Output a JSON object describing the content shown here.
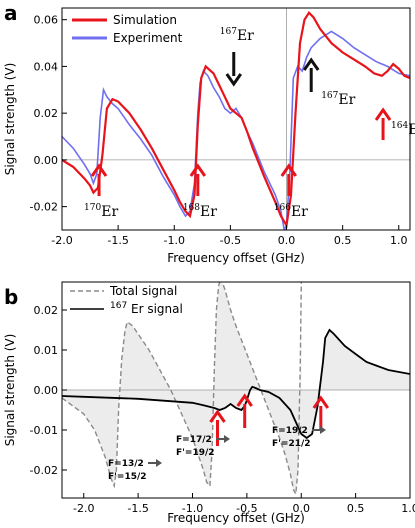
{
  "figure": {
    "panel_a_letter": "a",
    "panel_b_letter": "b"
  },
  "chart_data": [
    {
      "type": "line",
      "panel": "a",
      "xlabel": "Frequency offset (GHz)",
      "ylabel": "Signal strength (V)",
      "xlim": [
        -2.0,
        1.1
      ],
      "ylim": [
        -0.03,
        0.065
      ],
      "x_ticks": [
        -2.0,
        -1.5,
        -1.0,
        -0.5,
        0.0,
        0.5,
        1.0
      ],
      "x_tick_labels": [
        "-2.0",
        "-1.5",
        "-1.0",
        "-0.5",
        "0.0",
        "0.5",
        "1.0"
      ],
      "y_ticks": [
        -0.02,
        0.0,
        0.02,
        0.04,
        0.06
      ],
      "y_tick_labels": [
        "-0.02",
        "0.00",
        "0.02",
        "0.04",
        "0.06"
      ],
      "grid": false,
      "legend_position": "top-left",
      "colors": {
        "Simulation": "#e8141b",
        "Experiment": "#6f6ff0",
        "arrow_red": "#e8141b",
        "arrow_black": "#111111"
      },
      "series": [
        {
          "name": "Simulation",
          "x": [
            -2.0,
            -1.9,
            -1.8,
            -1.75,
            -1.72,
            -1.68,
            -1.64,
            -1.6,
            -1.55,
            -1.5,
            -1.4,
            -1.3,
            -1.2,
            -1.1,
            -1.0,
            -0.95,
            -0.9,
            -0.86,
            -0.82,
            -0.79,
            -0.76,
            -0.72,
            -0.65,
            -0.6,
            -0.55,
            -0.5,
            -0.45,
            -0.4,
            -0.35,
            -0.3,
            -0.2,
            -0.1,
            -0.05,
            0.0,
            0.04,
            0.08,
            0.12,
            0.16,
            0.2,
            0.24,
            0.3,
            0.4,
            0.5,
            0.6,
            0.7,
            0.78,
            0.85,
            0.9,
            0.95,
            1.0,
            1.05,
            1.1
          ],
          "y": [
            0.0,
            -0.003,
            -0.008,
            -0.011,
            -0.014,
            -0.012,
            0.002,
            0.022,
            0.026,
            0.025,
            0.02,
            0.013,
            0.005,
            -0.004,
            -0.013,
            -0.018,
            -0.022,
            -0.024,
            -0.015,
            0.015,
            0.035,
            0.04,
            0.037,
            0.032,
            0.027,
            0.022,
            0.02,
            0.018,
            0.012,
            0.005,
            -0.007,
            -0.018,
            -0.024,
            -0.028,
            -0.015,
            0.02,
            0.05,
            0.06,
            0.063,
            0.061,
            0.056,
            0.05,
            0.046,
            0.043,
            0.04,
            0.037,
            0.036,
            0.038,
            0.041,
            0.039,
            0.036,
            0.035
          ]
        },
        {
          "name": "Experiment",
          "x": [
            -2.0,
            -1.9,
            -1.8,
            -1.75,
            -1.72,
            -1.69,
            -1.66,
            -1.63,
            -1.6,
            -1.55,
            -1.5,
            -1.4,
            -1.3,
            -1.2,
            -1.1,
            -1.0,
            -0.95,
            -0.9,
            -0.86,
            -0.82,
            -0.79,
            -0.77,
            -0.74,
            -0.7,
            -0.65,
            -0.6,
            -0.55,
            -0.5,
            -0.45,
            -0.4,
            -0.35,
            -0.3,
            -0.2,
            -0.1,
            -0.05,
            -0.02,
            0.0,
            0.03,
            0.06,
            0.1,
            0.14,
            0.18,
            0.22,
            0.3,
            0.4,
            0.5,
            0.6,
            0.7,
            0.8,
            0.9,
            1.0,
            1.1
          ],
          "y": [
            0.01,
            0.005,
            -0.002,
            -0.006,
            -0.01,
            -0.006,
            0.018,
            0.03,
            0.027,
            0.024,
            0.022,
            0.015,
            0.009,
            0.002,
            -0.007,
            -0.015,
            -0.02,
            -0.024,
            -0.022,
            -0.01,
            0.02,
            0.033,
            0.038,
            0.036,
            0.031,
            0.027,
            0.022,
            0.02,
            0.022,
            0.018,
            0.012,
            0.007,
            -0.005,
            -0.015,
            -0.022,
            -0.03,
            -0.028,
            -0.005,
            0.035,
            0.04,
            0.038,
            0.044,
            0.048,
            0.052,
            0.055,
            0.052,
            0.048,
            0.045,
            0.042,
            0.04,
            0.037,
            0.036
          ]
        }
      ],
      "annotations": [
        {
          "mass": "170",
          "element": "Er",
          "x": -1.67,
          "arrow": "red",
          "position": "below"
        },
        {
          "mass": "168",
          "element": "Er",
          "x": -0.79,
          "arrow": "red",
          "position": "below"
        },
        {
          "mass": "166",
          "element": "Er",
          "x": 0.02,
          "arrow": "red",
          "position": "below"
        },
        {
          "mass": "167",
          "element": "Er",
          "x": -0.47,
          "arrow": "black",
          "position": "above"
        },
        {
          "mass": "167",
          "element": "Er",
          "x": 0.22,
          "arrow": "black",
          "position": "right"
        },
        {
          "mass": "164",
          "element": "Er",
          "x": 0.86,
          "arrow": "red",
          "position": "right"
        }
      ]
    },
    {
      "type": "line",
      "panel": "b",
      "xlabel": "Frequency offset (GHz)",
      "ylabel": "Signal strength (V)",
      "xlim": [
        -2.2,
        1.0
      ],
      "ylim": [
        -0.027,
        0.027
      ],
      "x_ticks": [
        -2.0,
        -1.5,
        -1.0,
        -0.5,
        0.0,
        0.5,
        1.0
      ],
      "x_tick_labels": [
        "-2.0",
        "-1.5",
        "-1.0",
        "-0.5",
        "0.0",
        "0.5",
        "1.0"
      ],
      "y_ticks": [
        -0.02,
        -0.01,
        0.0,
        0.01,
        0.02
      ],
      "y_tick_labels": [
        "-0.02",
        "-0.01",
        "0.00",
        "0.01",
        "0.02"
      ],
      "grid": false,
      "legend_position": "top-left",
      "colors": {
        "Total signal": "#8a8a8a",
        "Er167 signal": "#000000",
        "fill": "#ececec",
        "arrow_red": "#e8141b"
      },
      "series": [
        {
          "name": "Total signal",
          "style": "dashed",
          "x": [
            -2.2,
            -2.0,
            -1.9,
            -1.8,
            -1.75,
            -1.72,
            -1.7,
            -1.68,
            -1.65,
            -1.62,
            -1.6,
            -1.55,
            -1.5,
            -1.4,
            -1.3,
            -1.2,
            -1.1,
            -1.0,
            -0.95,
            -0.9,
            -0.87,
            -0.84,
            -0.82,
            -0.8,
            -0.78,
            -0.76,
            -0.74,
            -0.7,
            -0.65,
            -0.6,
            -0.5,
            -0.4,
            -0.3,
            -0.2,
            -0.15,
            -0.1,
            -0.07,
            -0.05,
            -0.03,
            -0.01,
            0.0
          ],
          "y": [
            -0.002,
            -0.006,
            -0.01,
            -0.017,
            -0.022,
            -0.024,
            -0.02,
            -0.005,
            0.008,
            0.015,
            0.017,
            0.016,
            0.014,
            0.01,
            0.005,
            0.0,
            -0.006,
            -0.012,
            -0.016,
            -0.02,
            -0.023,
            -0.024,
            -0.015,
            0.005,
            0.02,
            0.026,
            0.028,
            0.025,
            0.02,
            0.016,
            0.009,
            0.002,
            -0.005,
            -0.012,
            -0.016,
            -0.021,
            -0.025,
            -0.026,
            -0.02,
            0.005,
            0.027
          ]
        },
        {
          "name": "Er167 signal",
          "style": "solid",
          "x": [
            -2.2,
            -2.0,
            -1.5,
            -1.0,
            -0.9,
            -0.8,
            -0.75,
            -0.7,
            -0.65,
            -0.6,
            -0.55,
            -0.52,
            -0.5,
            -0.47,
            -0.45,
            -0.42,
            -0.38,
            -0.3,
            -0.2,
            -0.1,
            -0.05,
            0.0,
            0.05,
            0.1,
            0.15,
            0.2,
            0.22,
            0.26,
            0.3,
            0.4,
            0.5,
            0.6,
            0.7,
            0.8,
            0.9,
            1.0
          ],
          "y": [
            -0.0015,
            -0.0017,
            -0.0022,
            -0.0032,
            -0.0038,
            -0.0045,
            -0.005,
            -0.0045,
            -0.0035,
            -0.0045,
            -0.005,
            -0.004,
            -0.0025,
            0.0,
            0.0008,
            0.0005,
            0.0,
            -0.0005,
            -0.002,
            -0.005,
            -0.008,
            -0.011,
            -0.012,
            -0.011,
            -0.004,
            0.007,
            0.013,
            0.015,
            0.014,
            0.011,
            0.009,
            0.007,
            0.006,
            0.005,
            0.0045,
            0.004
          ]
        }
      ],
      "annotations": [
        {
          "line1": "F=13/2",
          "line2": "F'=15/2",
          "x": -0.77
        },
        {
          "line1": "F=17/2",
          "line2": "F'=19/2",
          "x": -0.52
        },
        {
          "line1": "F=19/2",
          "line2": "F'=21/2",
          "x": 0.18
        }
      ]
    }
  ],
  "legend_a": {
    "simulation": "Simulation",
    "experiment": "Experiment"
  },
  "legend_b": {
    "total": "Total signal",
    "er167_mass": "167",
    "er167_rest": " Er signal"
  }
}
